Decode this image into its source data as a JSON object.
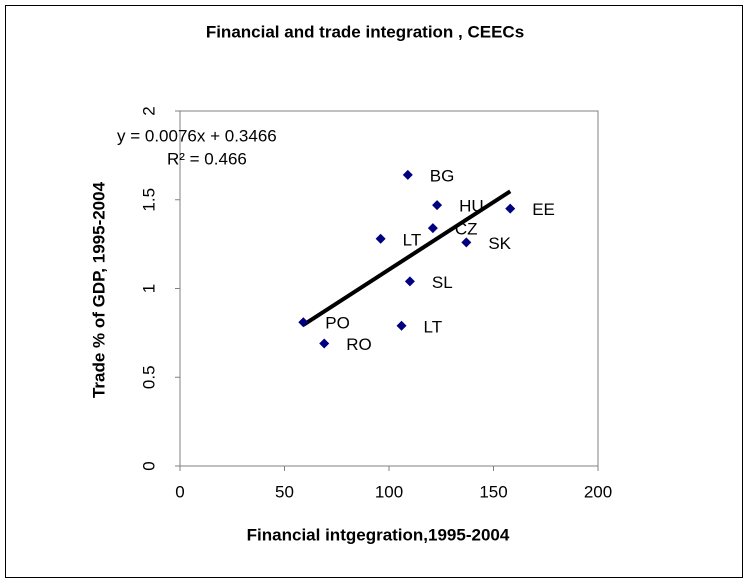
{
  "chart_data": {
    "type": "scatter",
    "title": "Financial and trade integration , CEECs",
    "x_label": "Financial intgegration,1995-2004",
    "y_label": "Trade % of GDP, 1995-2004",
    "x": [
      109,
      123,
      158,
      121,
      96,
      137,
      110,
      106,
      59,
      69
    ],
    "values": [
      1.64,
      1.47,
      1.45,
      1.34,
      1.28,
      1.26,
      1.04,
      0.79,
      0.81,
      0.69
    ],
    "point_labels": [
      "BG",
      "HU",
      "EE",
      "CZ",
      "LT",
      "SK",
      "SL",
      "LT",
      "PO",
      "RO"
    ],
    "color": "#000080",
    "xlim": [
      0,
      200
    ],
    "xticks": [
      0,
      50,
      100,
      150,
      200
    ],
    "ylim": [
      0,
      2
    ],
    "yticks": [
      0,
      0.5,
      1,
      1.5,
      2
    ],
    "trendline": {
      "slope": 0.0076,
      "intercept": 0.3466,
      "equation": "y = 0.0076x + 0.3466",
      "r2": "R² = 0.466",
      "color": "#000000"
    }
  }
}
